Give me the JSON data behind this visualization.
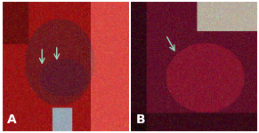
{
  "figsize": [
    2.91,
    1.5
  ],
  "dpi": 100,
  "bg_color": "#ffffff",
  "panel_a": {
    "label": "A",
    "label_color": "white",
    "label_fontsize": 10,
    "label_fontweight": "bold"
  },
  "panel_b": {
    "label": "B",
    "label_color": "white",
    "label_fontsize": 10,
    "label_fontweight": "bold"
  },
  "outer_border_color": "#333333"
}
